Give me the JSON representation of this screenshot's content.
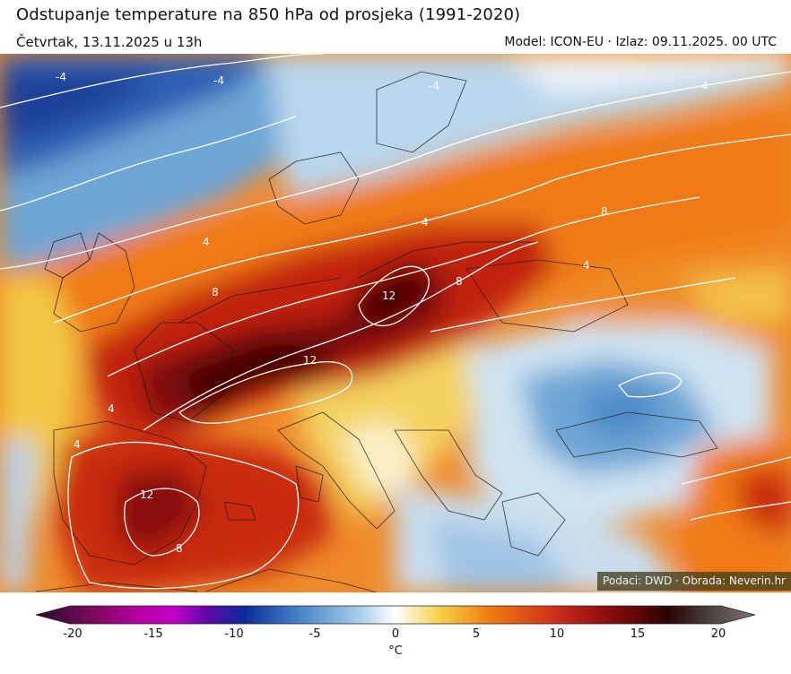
{
  "header": {
    "title": "Odstupanje temperature na 850 hPa od prosjeka (1991-2020)",
    "valid_time": "Četvrtak, 13.11.2025 u 13h",
    "model_info": "Model: ICON-EU · Izlaz: 09.11.2025. 00 UTC"
  },
  "credit": "Podaci: DWD · Obrada: Neverin.hr",
  "map": {
    "variable": "850 hPa temperature anomaly",
    "contour_labels": [
      "4",
      "4",
      "4",
      "4",
      "4",
      "8",
      "8",
      "8",
      "8",
      "12",
      "12",
      "12",
      "4",
      "-4",
      "-4",
      "-4"
    ]
  },
  "colorbar": {
    "min": -20,
    "max": 20,
    "unit": "°C",
    "ticks": [
      "-20",
      "-15",
      "-10",
      "-5",
      "0",
      "5",
      "10",
      "15",
      "20"
    ],
    "colors": {
      "cold_extreme": "#2a0a30",
      "purple": "#c400c8",
      "deep_blue": "#0b2a9a",
      "blue": "#3f7fc4",
      "light_blue": "#a7cde8",
      "neutral": "#ffffff",
      "yellow": "#f6d24a",
      "orange": "#ef7d12",
      "red": "#b3180e",
      "dark_red": "#5a0606",
      "warm_extreme": "#7d7373"
    }
  }
}
